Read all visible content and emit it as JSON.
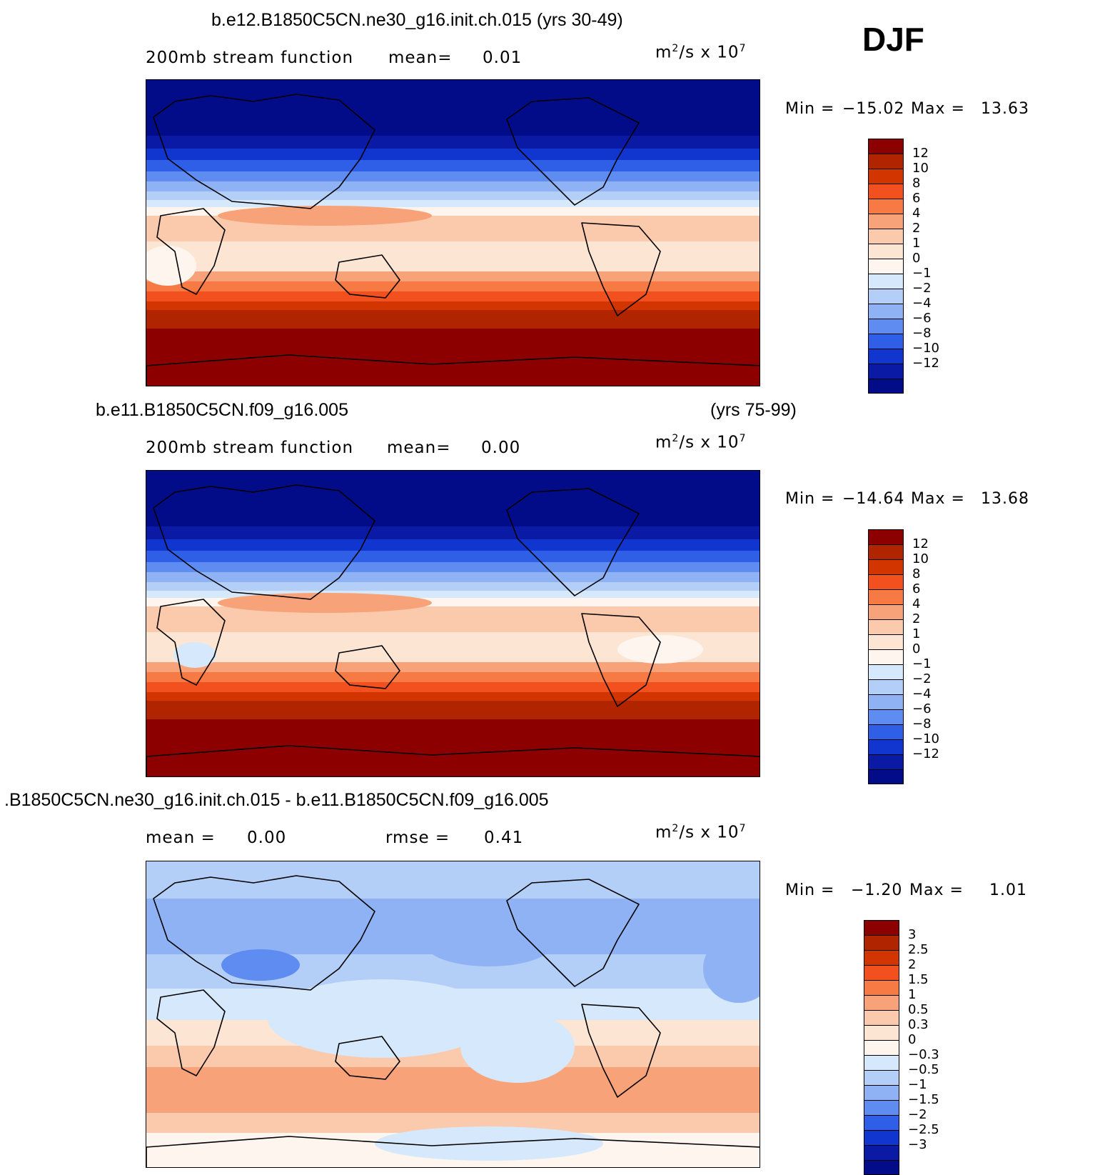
{
  "season": "DJF",
  "units": {
    "base": "m",
    "exp": "2",
    "rest": "/s x 10",
    "exp2": "7"
  },
  "panels": [
    {
      "title": "b.e12.B1850C5CN.ne30_g16.init.ch.015 (yrs 30-49)",
      "title_right": "",
      "field": "200mb stream function",
      "stat1_label": "mean=",
      "stat1_value": "0.01",
      "stat2_label": "",
      "stat2_value": "",
      "min_label": "Min =",
      "min_value": "−15.02",
      "max_label": "Max =",
      "max_value": "13.63",
      "kind": "abs"
    },
    {
      "title": "b.e11.B1850C5CN.f09_g16.005",
      "title_right": "(yrs 75-99)",
      "field": "200mb stream function",
      "stat1_label": "mean=",
      "stat1_value": "0.00",
      "stat2_label": "",
      "stat2_value": "",
      "min_label": "Min =",
      "min_value": "−14.64",
      "max_label": "Max =",
      "max_value": "13.68",
      "kind": "abs"
    },
    {
      "title": ".B1850C5CN.ne30_g16.init.ch.015 - b.e11.B1850C5CN.f09_g16.005",
      "title_right": "",
      "field": "",
      "stat1_label": "mean =",
      "stat1_value": "0.00",
      "stat2_label": "rmse =",
      "stat2_value": "0.41",
      "min_label": "Min =",
      "min_value": "−1.20",
      "max_label": "Max =",
      "max_value": "1.01",
      "kind": "diff"
    }
  ],
  "colorbars": {
    "abs": {
      "levels": [
        "12",
        "10",
        "8",
        "6",
        "4",
        "2",
        "1",
        "0",
        "−1",
        "−2",
        "−4",
        "−6",
        "−8",
        "−10",
        "−12"
      ],
      "colors": [
        "#8c0000",
        "#b02400",
        "#d23500",
        "#f2501e",
        "#f77a45",
        "#f7a278",
        "#fbc9ab",
        "#fde5d4",
        "#fdf5ee",
        "#d6e8fb",
        "#b3cff8",
        "#8fb2f4",
        "#5e8cf0",
        "#2e5fe6",
        "#1036cf",
        "#0a1aa4",
        "#020c88"
      ]
    },
    "diff": {
      "levels": [
        "3",
        "2.5",
        "2",
        "1.5",
        "1",
        "0.5",
        "0.3",
        "0",
        "−0.3",
        "−0.5",
        "−1",
        "−1.5",
        "−2",
        "−2.5",
        "−3"
      ],
      "colors": [
        "#8c0000",
        "#b02400",
        "#d23500",
        "#f2501e",
        "#f77a45",
        "#f7a278",
        "#fbc9ab",
        "#fde5d4",
        "#fdf5ee",
        "#d6e8fb",
        "#b3cff8",
        "#8fb2f4",
        "#5e8cf0",
        "#2e5fe6",
        "#1036cf",
        "#0a1aa4",
        "#020c88"
      ]
    }
  }
}
